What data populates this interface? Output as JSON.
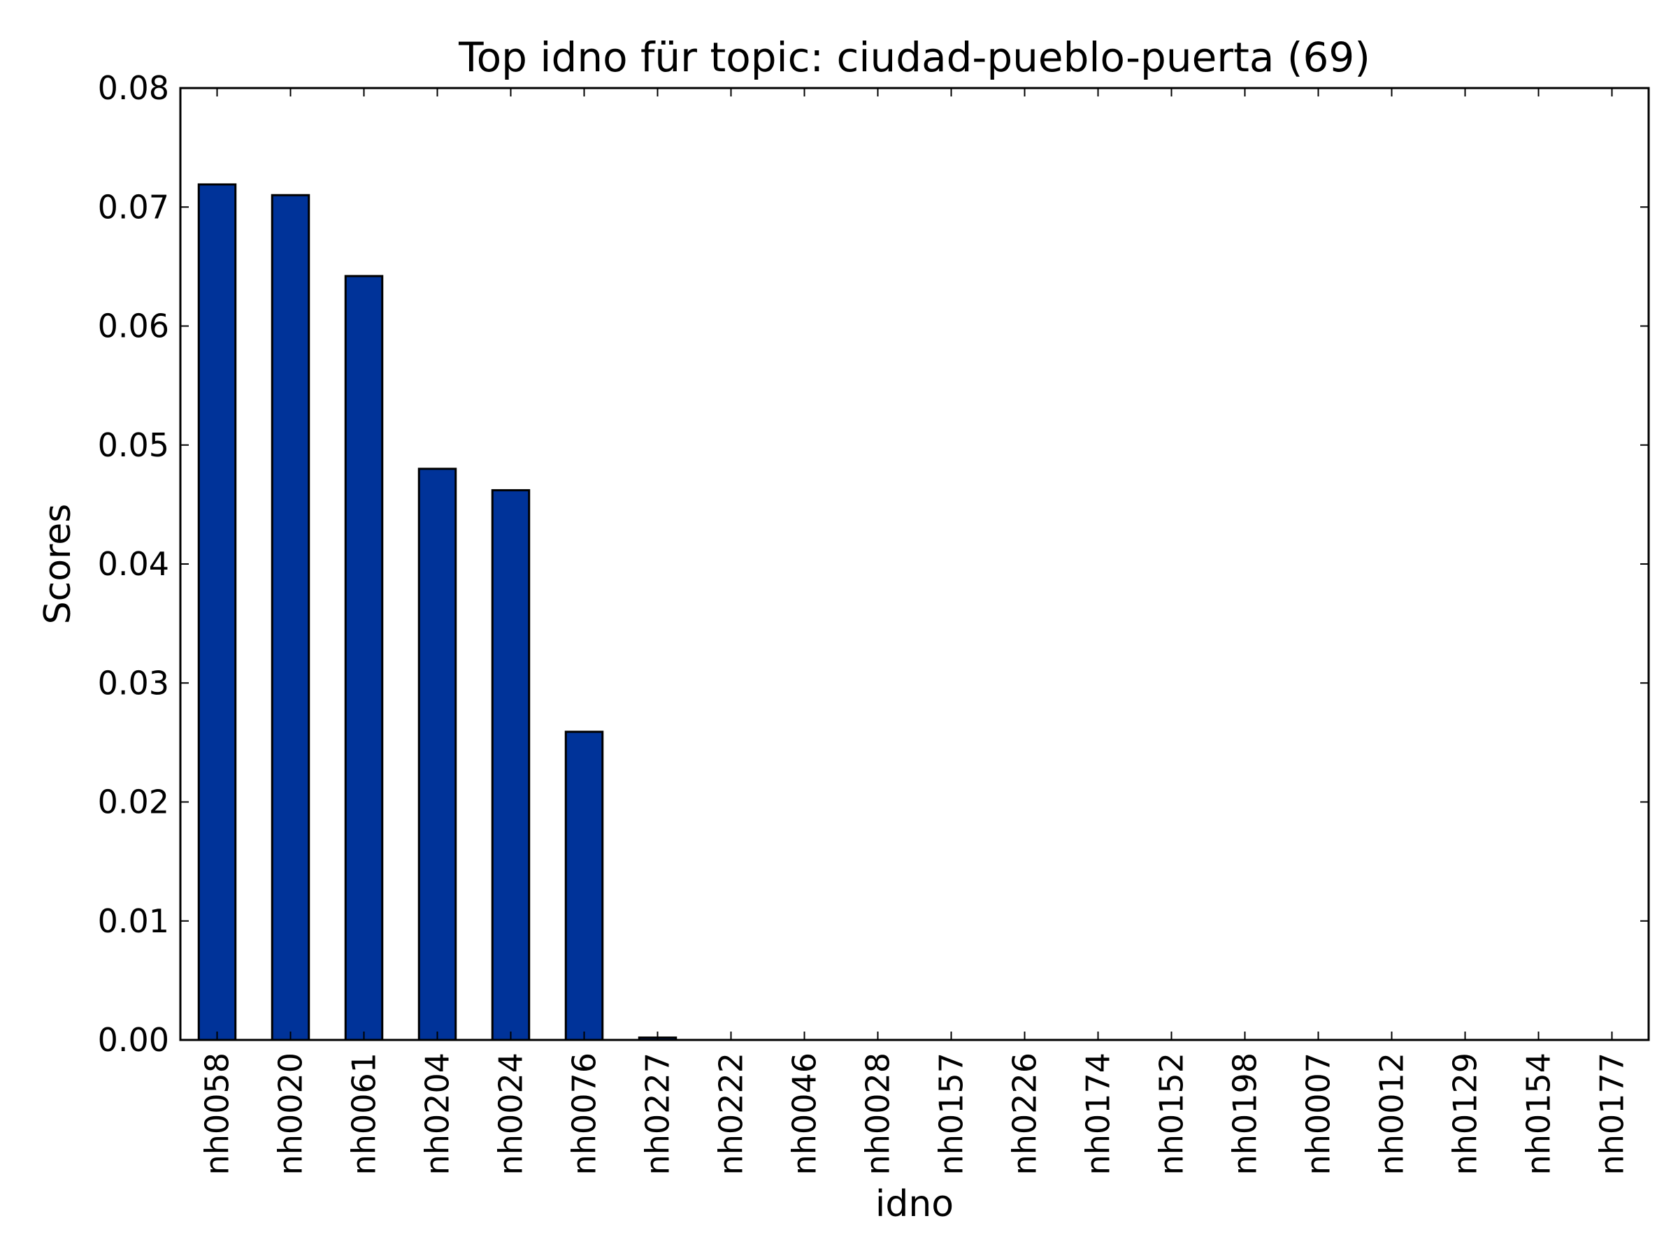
{
  "chart_data": {
    "type": "bar",
    "title": "Top idno für topic: ciudad-pueblo-puerta (69)",
    "xlabel": "idno",
    "ylabel": "Scores",
    "categories": [
      "nh0058",
      "nh0020",
      "nh0061",
      "nh0204",
      "nh0024",
      "nh0076",
      "nh0227",
      "nh0222",
      "nh0046",
      "nh0028",
      "nh0157",
      "nh0226",
      "nh0174",
      "nh0152",
      "nh0198",
      "nh0007",
      "nh0012",
      "nh0129",
      "nh0154",
      "nh0177"
    ],
    "values": [
      0.0719,
      0.071,
      0.0642,
      0.048,
      0.0462,
      0.0259,
      0.0002,
      0,
      0,
      0,
      0,
      0,
      0,
      0,
      0,
      0,
      0,
      0,
      0,
      0
    ],
    "ylim": [
      0,
      0.08
    ],
    "yticks": [
      "0.00",
      "0.01",
      "0.02",
      "0.03",
      "0.04",
      "0.05",
      "0.06",
      "0.07",
      "0.08"
    ],
    "grid": false,
    "legend": "none",
    "bar_color": "#003399",
    "edge_color": "#000000"
  }
}
